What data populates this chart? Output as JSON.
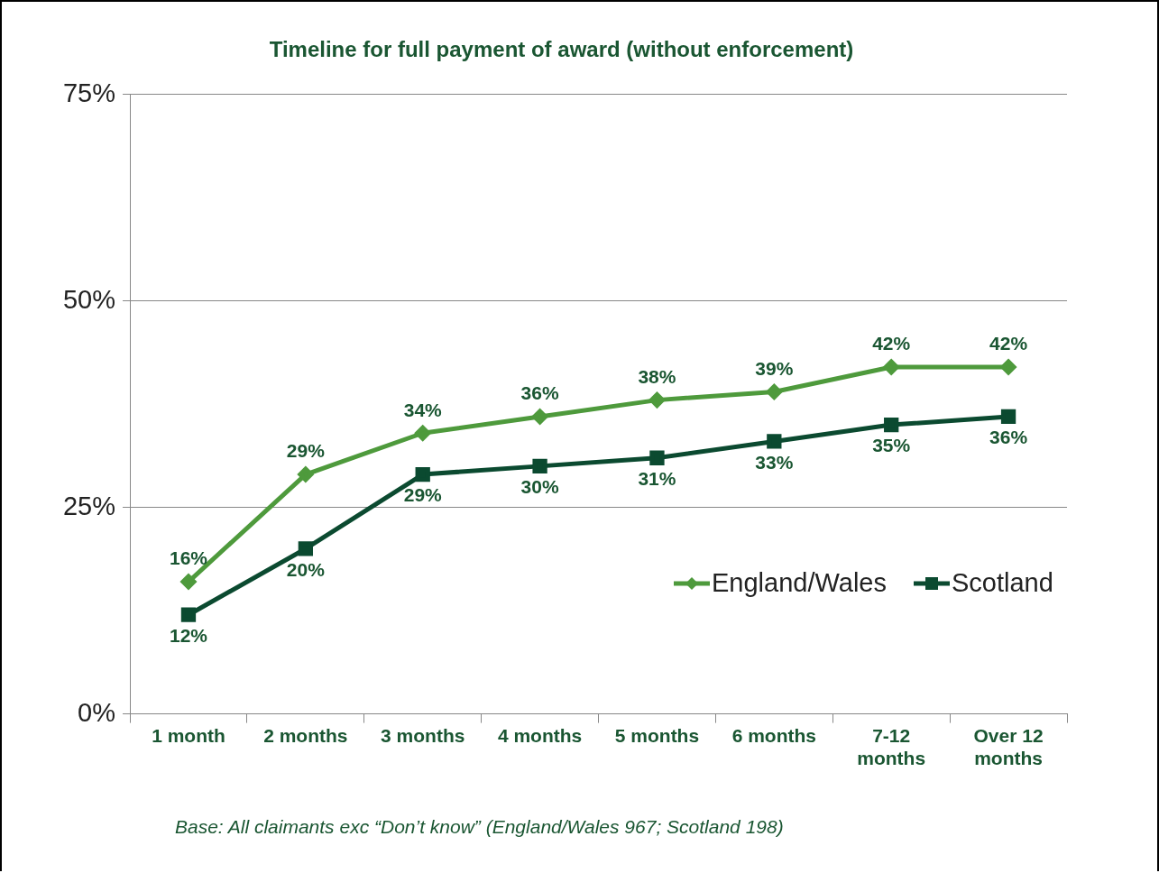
{
  "chart_data": {
    "type": "line",
    "title": "Timeline for full payment of award (without enforcement)",
    "categories": [
      "1 month",
      "2 months",
      "3 months",
      "4 months",
      "5 months",
      "6 months",
      "7-12 months",
      "Over 12 months"
    ],
    "series": [
      {
        "name": "England/Wales",
        "color": "#4e9a3c",
        "marker": "diamond",
        "values": [
          16,
          29,
          34,
          36,
          38,
          39,
          42,
          42
        ],
        "value_labels": [
          "16%",
          "29%",
          "34%",
          "36%",
          "38%",
          "39%",
          "42%",
          "42%"
        ]
      },
      {
        "name": "Scotland",
        "color": "#0b4a30",
        "marker": "square",
        "values": [
          12,
          20,
          29,
          30,
          31,
          33,
          35,
          36
        ],
        "value_labels": [
          "12%",
          "20%",
          "29%",
          "30%",
          "31%",
          "33%",
          "35%",
          "36%"
        ]
      }
    ],
    "ylim": [
      0,
      75
    ],
    "yticks": [
      {
        "value": 0,
        "label": "0%"
      },
      {
        "value": 25,
        "label": "25%"
      },
      {
        "value": 50,
        "label": "50%"
      },
      {
        "value": 75,
        "label": "75%"
      }
    ],
    "grid": "y",
    "legend": "right",
    "line_style": "solid",
    "annotations": [
      "Base: All claimants exc “Don’t know” (England/Wales 967; Scotland 198)"
    ]
  }
}
